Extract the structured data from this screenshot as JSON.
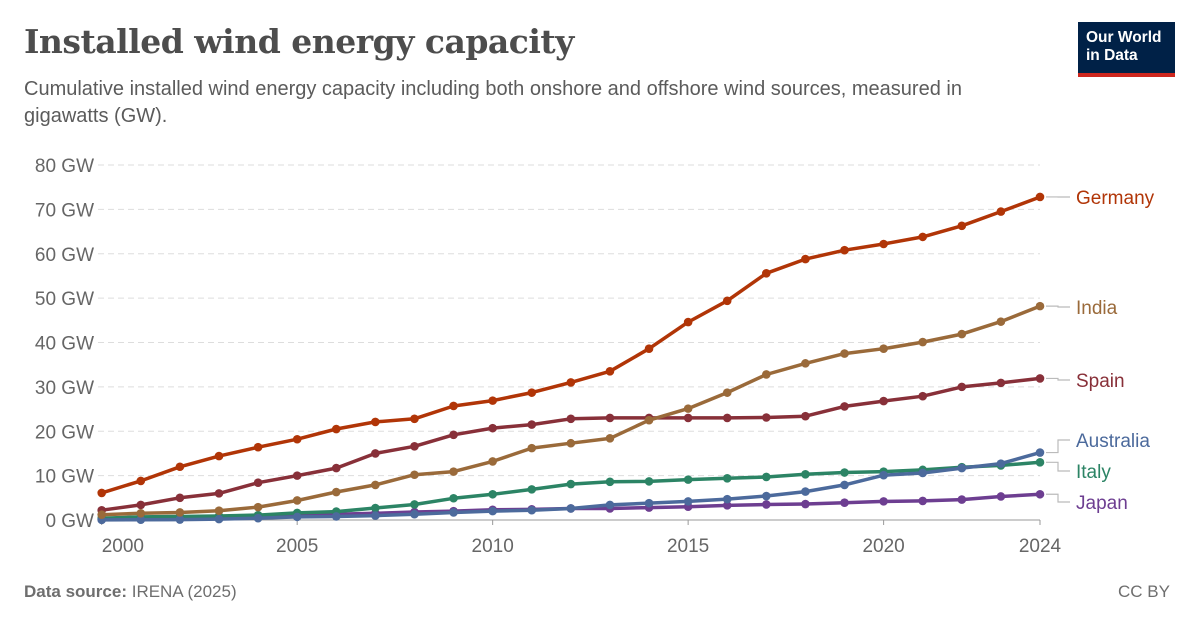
{
  "header": {
    "title": "Installed wind energy capacity",
    "subtitle": "Cumulative installed wind energy capacity including both onshore and offshore wind sources, measured in gigawatts (GW).",
    "logo_line1": "Our World",
    "logo_line2": "in Data"
  },
  "footer": {
    "source_label": "Data source:",
    "source_value": "IRENA (2025)",
    "license": "CC BY"
  },
  "chart_data": {
    "type": "line",
    "title": "Installed wind energy capacity",
    "xlabel": "",
    "ylabel": "",
    "x": [
      2000,
      2001,
      2002,
      2003,
      2004,
      2005,
      2006,
      2007,
      2008,
      2009,
      2010,
      2011,
      2012,
      2013,
      2014,
      2015,
      2016,
      2017,
      2018,
      2019,
      2020,
      2021,
      2022,
      2023,
      2024
    ],
    "xlim": [
      2000,
      2024
    ],
    "ylim": [
      0,
      80
    ],
    "x_ticks": [
      "2000",
      "2005",
      "2010",
      "2015",
      "2020",
      "2024"
    ],
    "y_ticks": [
      "0 GW",
      "10 GW",
      "20 GW",
      "30 GW",
      "40 GW",
      "50 GW",
      "60 GW",
      "70 GW",
      "80 GW"
    ],
    "grid": "horizontal dashed",
    "legend": "right (line-end labels)",
    "series": [
      {
        "name": "Germany",
        "color": "#b13507",
        "values": [
          6.1,
          8.8,
          12.0,
          14.4,
          16.4,
          18.2,
          20.5,
          22.1,
          22.8,
          25.7,
          26.9,
          28.7,
          31.0,
          33.5,
          38.6,
          44.6,
          49.4,
          55.6,
          58.8,
          60.8,
          62.2,
          63.8,
          66.3,
          69.5,
          72.8
        ]
      },
      {
        "name": "India",
        "color": "#9a6a3a",
        "values": [
          1.2,
          1.5,
          1.7,
          2.1,
          2.9,
          4.4,
          6.3,
          7.9,
          10.2,
          10.9,
          13.2,
          16.2,
          17.3,
          18.4,
          22.5,
          25.1,
          28.7,
          32.8,
          35.3,
          37.5,
          38.6,
          40.1,
          41.9,
          44.7,
          48.2
        ]
      },
      {
        "name": "Spain",
        "color": "#883039",
        "values": [
          2.2,
          3.4,
          5.0,
          6.0,
          8.4,
          10.0,
          11.7,
          15.0,
          16.6,
          19.2,
          20.7,
          21.5,
          22.8,
          23.0,
          23.0,
          23.0,
          23.0,
          23.1,
          23.4,
          25.6,
          26.8,
          27.9,
          30.0,
          30.9,
          31.9
        ]
      },
      {
        "name": "Australia",
        "color": "#4c6a9c",
        "values": [
          0.03,
          0.07,
          0.1,
          0.2,
          0.4,
          0.7,
          0.8,
          1.0,
          1.3,
          1.7,
          2.0,
          2.2,
          2.6,
          3.4,
          3.8,
          4.2,
          4.7,
          5.4,
          6.4,
          7.9,
          10.1,
          10.6,
          11.7,
          12.7,
          15.2
        ]
      },
      {
        "name": "Italy",
        "color": "#2c8465",
        "values": [
          0.4,
          0.7,
          0.8,
          0.9,
          1.1,
          1.6,
          1.9,
          2.7,
          3.5,
          4.9,
          5.8,
          6.9,
          8.1,
          8.6,
          8.7,
          9.1,
          9.4,
          9.7,
          10.3,
          10.7,
          10.9,
          11.3,
          11.9,
          12.3,
          13.0
        ]
      },
      {
        "name": "Japan",
        "color": "#6d3e91",
        "values": [
          0.1,
          0.3,
          0.4,
          0.6,
          0.9,
          1.0,
          1.3,
          1.5,
          1.8,
          2.0,
          2.3,
          2.4,
          2.6,
          2.6,
          2.8,
          3.0,
          3.3,
          3.5,
          3.6,
          3.9,
          4.2,
          4.3,
          4.6,
          5.3,
          5.8
        ]
      }
    ]
  }
}
